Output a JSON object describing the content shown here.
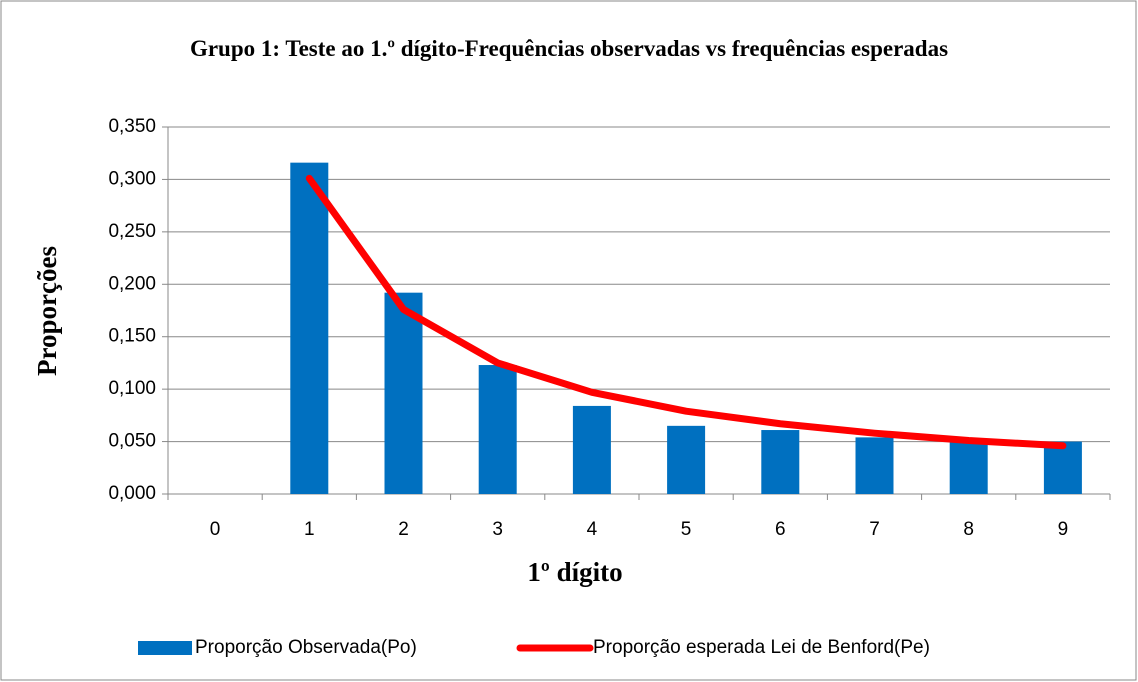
{
  "chart_data": {
    "type": "bar",
    "title": "Grupo 1: Teste ao 1.º dígito-Frequências observadas vs frequências esperadas",
    "x_label": "1º dígito",
    "y_label": "Proporções",
    "categories": [
      "0",
      "1",
      "2",
      "3",
      "4",
      "5",
      "6",
      "7",
      "8",
      "9"
    ],
    "series": [
      {
        "name": "Proporção Observada(Po)",
        "type": "bar",
        "color": "#0070c0",
        "values": [
          null,
          0.316,
          0.192,
          0.123,
          0.084,
          0.065,
          0.061,
          0.054,
          0.051,
          0.05
        ]
      },
      {
        "name": "Proporção esperada Lei de Benford(Pe)",
        "type": "line",
        "color": "#ff0000",
        "values": [
          null,
          0.301,
          0.176,
          0.125,
          0.097,
          0.079,
          0.067,
          0.058,
          0.051,
          0.046
        ]
      }
    ],
    "ylim": [
      0,
      0.35
    ],
    "yticks": [
      {
        "value": 0,
        "label": "0,000"
      },
      {
        "value": 0.05,
        "label": "0,050"
      },
      {
        "value": 0.1,
        "label": "0,100"
      },
      {
        "value": 0.15,
        "label": "0,150"
      },
      {
        "value": 0.2,
        "label": "0,200"
      },
      {
        "value": 0.25,
        "label": "0,250"
      },
      {
        "value": 0.3,
        "label": "0,300"
      },
      {
        "value": 0.35,
        "label": "0,350"
      }
    ],
    "grid": true,
    "legend": "bottom"
  }
}
